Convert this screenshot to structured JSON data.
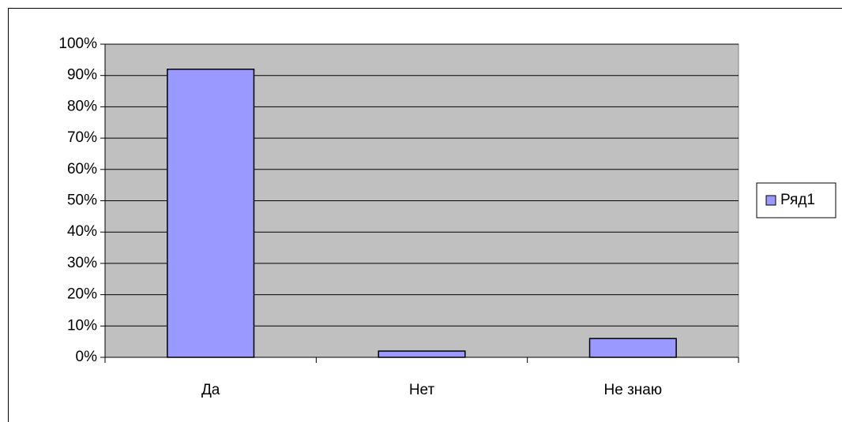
{
  "chart_data": {
    "type": "bar",
    "categories": [
      "Да",
      "Нет",
      "Не знаю"
    ],
    "series": [
      {
        "name": "Ряд1",
        "color": "#9999ff",
        "values": [
          92,
          2,
          6
        ]
      }
    ],
    "ylim": [
      0,
      100
    ],
    "yticks": [
      {
        "value": 0,
        "label": "0%"
      },
      {
        "value": 10,
        "label": "10%"
      },
      {
        "value": 20,
        "label": "20%"
      },
      {
        "value": 30,
        "label": "30%"
      },
      {
        "value": 40,
        "label": "40%"
      },
      {
        "value": 50,
        "label": "50%"
      },
      {
        "value": 60,
        "label": "60%"
      },
      {
        "value": 70,
        "label": "70%"
      },
      {
        "value": 80,
        "label": "80%"
      },
      {
        "value": 90,
        "label": "90%"
      },
      {
        "value": 100,
        "label": "100%"
      }
    ],
    "grid": true,
    "plot_background": "#c0c0c0",
    "legend": "right"
  }
}
